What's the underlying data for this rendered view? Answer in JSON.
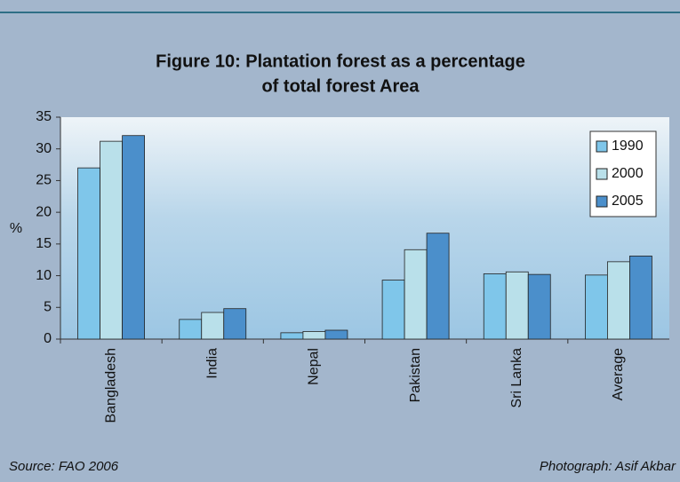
{
  "chart_data": {
    "type": "bar",
    "title": "Figure 10: Plantation forest as a percentage",
    "subtitle": "of total forest Area",
    "y_label": "%",
    "categories": [
      "Bangladesh",
      "India",
      "Nepal",
      "Pakistan",
      "Sri Lanka",
      "Average"
    ],
    "series": [
      {
        "name": "1990",
        "color": "#7fc6ea",
        "values": [
          27,
          3.1,
          1,
          9.3,
          10.3,
          10.1
        ]
      },
      {
        "name": "2000",
        "color": "#b9e0ea",
        "values": [
          31.2,
          4.2,
          1.2,
          14.1,
          10.6,
          12.2
        ]
      },
      {
        "name": "2005",
        "color": "#4b8fcb",
        "values": [
          32.1,
          4.8,
          1.4,
          16.7,
          10.2,
          13.1
        ]
      }
    ],
    "ylim": [
      0,
      35
    ],
    "yticks": [
      0,
      5,
      10,
      15,
      20,
      25,
      30,
      35
    ],
    "legend": "top-right",
    "source": "Source: FAO 2006",
    "credit": "Photograph: Asif Akbar"
  }
}
